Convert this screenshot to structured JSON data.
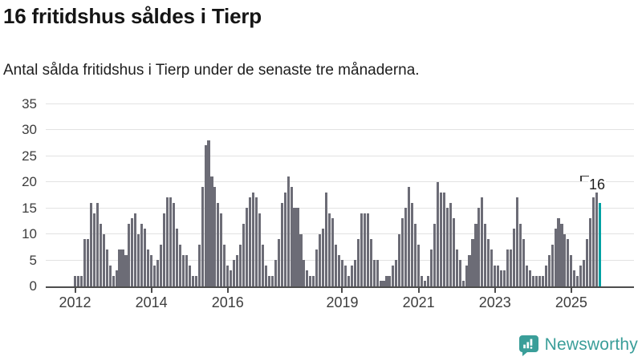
{
  "header": {
    "title": "16 fritidshus såldes i Tierp",
    "subtitle": "Antal sålda fritidshus i Tierp under de senaste tre månaderna."
  },
  "chart_data": {
    "type": "bar",
    "title": "16 fritidshus såldes i Tierp",
    "subtitle": "Antal sålda fritidshus i Tierp under de senaste tre månaderna.",
    "x_unit": "month",
    "x_start": "2012-01",
    "values": [
      2,
      2,
      2,
      9,
      9,
      16,
      14,
      16,
      12,
      10,
      7,
      4,
      2,
      3,
      7,
      7,
      6,
      12,
      13,
      14,
      10,
      12,
      11,
      7,
      6,
      4,
      5,
      8,
      14,
      17,
      17,
      16,
      11,
      8,
      6,
      6,
      4,
      2,
      2,
      8,
      19,
      27,
      28,
      21,
      19,
      16,
      14,
      8,
      4,
      3,
      5,
      6,
      8,
      12,
      15,
      17,
      18,
      17,
      14,
      8,
      4,
      2,
      2,
      5,
      9,
      16,
      18,
      21,
      19,
      15,
      15,
      10,
      5,
      3,
      2,
      2,
      7,
      10,
      11,
      18,
      14,
      13,
      8,
      6,
      5,
      4,
      2,
      4,
      5,
      9,
      14,
      14,
      14,
      9,
      5,
      5,
      1,
      1,
      2,
      2,
      4,
      5,
      10,
      13,
      15,
      19,
      16,
      12,
      8,
      2,
      1,
      2,
      7,
      12,
      20,
      18,
      18,
      15,
      16,
      13,
      7,
      5,
      1,
      4,
      6,
      9,
      12,
      15,
      17,
      12,
      9,
      7,
      4,
      4,
      3,
      3,
      7,
      7,
      11,
      17,
      12,
      9,
      4,
      3,
      2,
      2,
      2,
      2,
      4,
      6,
      8,
      11,
      13,
      12,
      10,
      9,
      6,
      3,
      2,
      4,
      5,
      9,
      13,
      17,
      21,
      16
    ],
    "last_value": 16,
    "ylim": [
      0,
      35
    ],
    "y_ticks": [
      0,
      5,
      10,
      15,
      20,
      25,
      30,
      35
    ],
    "x_ticks": [
      {
        "label": "2012",
        "month_index": 0
      },
      {
        "label": "2014",
        "month_index": 24
      },
      {
        "label": "2016",
        "month_index": 48
      },
      {
        "label": "2019",
        "month_index": 84
      },
      {
        "label": "2021",
        "month_index": 108
      },
      {
        "label": "2023",
        "month_index": 132
      },
      {
        "label": "2025",
        "month_index": 156
      }
    ],
    "grid": "horizontal",
    "legend": "none",
    "annotation": {
      "label": "16",
      "target": "last-bar"
    },
    "colors": {
      "bar": "#6c6c76",
      "highlight": "#00a1a3",
      "gridline": "#e2e2e2",
      "axis": "#4d4d4d"
    }
  },
  "branding": {
    "name": "Newsworthy",
    "color": "#3a9e99",
    "icon": "newsworthy-bubble-chart-icon"
  }
}
